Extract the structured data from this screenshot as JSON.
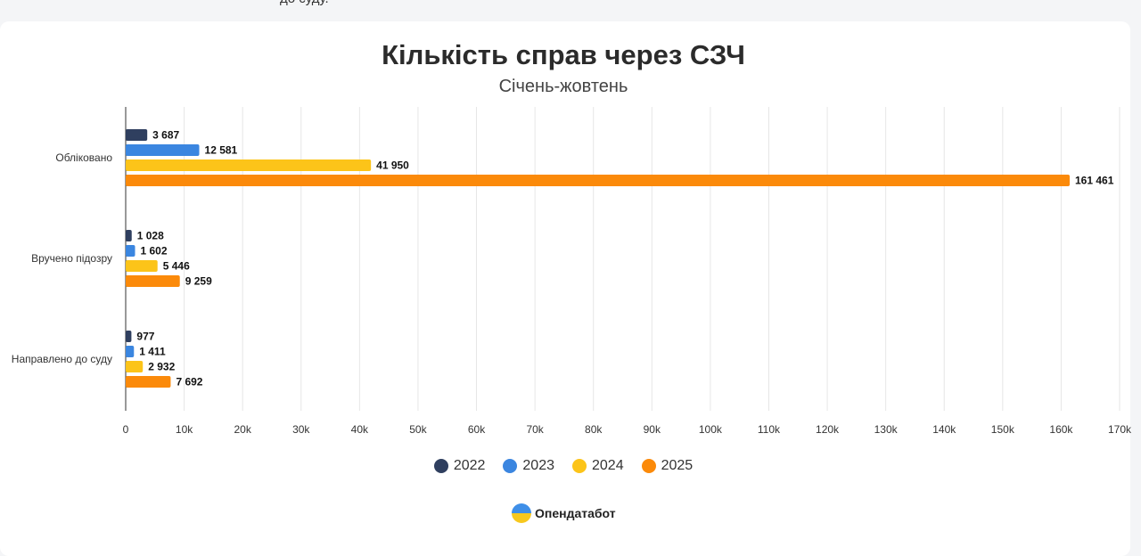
{
  "page": {
    "top_text": "до суду."
  },
  "brand": {
    "logo_icon": "opendatabot-logo-icon",
    "name": "Опендатабот"
  },
  "chart_data": {
    "type": "bar",
    "orientation": "horizontal",
    "title": "Кількість справ через СЗЧ",
    "subtitle": "Січень-жовтень",
    "categories": [
      "Обліковано",
      "Вручено підозру",
      "Направлено до суду"
    ],
    "series": [
      {
        "name": "2022",
        "color": "#2f3f5f",
        "values": [
          3687,
          1028,
          977
        ],
        "labels": [
          "3 687",
          "1 028",
          "977"
        ]
      },
      {
        "name": "2023",
        "color": "#3b86e0",
        "values": [
          12581,
          1602,
          1411
        ],
        "labels": [
          "12 581",
          "1 602",
          "1 411"
        ]
      },
      {
        "name": "2024",
        "color": "#fcc419",
        "values": [
          41950,
          5446,
          2932
        ],
        "labels": [
          "41 950",
          "5 446",
          "2 932"
        ]
      },
      {
        "name": "2025",
        "color": "#fb8a0a",
        "values": [
          161461,
          9259,
          7692
        ],
        "labels": [
          "161 461",
          "9 259",
          "7 692"
        ]
      }
    ],
    "xlim": [
      0,
      170000
    ],
    "x_ticks": [
      0,
      10000,
      20000,
      30000,
      40000,
      50000,
      60000,
      70000,
      80000,
      90000,
      100000,
      110000,
      120000,
      130000,
      140000,
      150000,
      160000,
      170000
    ],
    "x_tick_labels": [
      "0",
      "10k",
      "20k",
      "30k",
      "40k",
      "50k",
      "60k",
      "70k",
      "80k",
      "90k",
      "100k",
      "110k",
      "120k",
      "130k",
      "140k",
      "150k",
      "160k",
      "170k"
    ],
    "grid": true,
    "legend_position": "bottom"
  }
}
